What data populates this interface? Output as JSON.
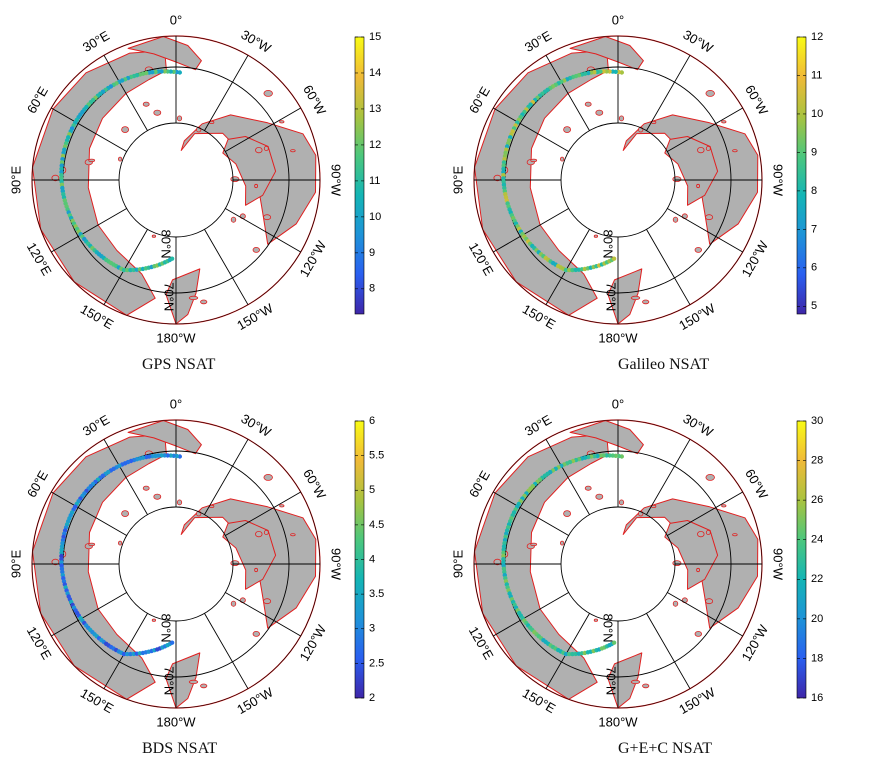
{
  "colors": {
    "ocean": "#ffffff",
    "land": "#b0b0b0",
    "coast": "#e02020",
    "grid": "#000000",
    "colormap": [
      "#3e26a8",
      "#2a5ff0",
      "#1e93d8",
      "#14b5b5",
      "#4cc77d",
      "#a9c33f",
      "#f0ba38",
      "#f9fb15"
    ]
  },
  "panels": [
    {
      "caption": "GPS NSAT",
      "longitude_labels": [
        "90°W",
        "120°W",
        "150°W",
        "180°W",
        "150°E",
        "120°E",
        "90°E",
        "60°E",
        "30°E",
        "0°",
        "30°W",
        "60°W"
      ],
      "latitude_label": "80°N",
      "latitude_label_2": "70°N",
      "colorbar": {
        "min": 7.3,
        "max": 15,
        "ticks": [
          8,
          9,
          10,
          11,
          12,
          13,
          14,
          15
        ]
      },
      "track_range": [
        9.5,
        12.5
      ]
    },
    {
      "caption": "Galileo NSAT",
      "longitude_labels": [
        "90°W",
        "120°W",
        "150°W",
        "180°W",
        "150°E",
        "120°E",
        "90°E",
        "60°E",
        "30°E",
        "0°",
        "30°W",
        "60°W"
      ],
      "latitude_label": "80°N",
      "latitude_label_2": "70°N",
      "colorbar": {
        "min": 4.8,
        "max": 12,
        "ticks": [
          5,
          6,
          7,
          8,
          9,
          10,
          11,
          12
        ]
      },
      "track_range": [
        7.5,
        10.5
      ]
    },
    {
      "caption": "BDS NSAT",
      "longitude_labels": [
        "90°W",
        "120°W",
        "150°W",
        "180°W",
        "150°E",
        "120°E",
        "90°E",
        "60°E",
        "30°E",
        "0°",
        "30°W",
        "60°W"
      ],
      "latitude_label": "80°N",
      "latitude_label_2": "70°N",
      "colorbar": {
        "min": 2,
        "max": 6,
        "ticks": [
          2,
          2.5,
          3,
          3.5,
          4,
          4.5,
          5,
          5.5,
          6
        ]
      },
      "track_range": [
        2.3,
        3.6
      ]
    },
    {
      "caption": "G+E+C NSAT",
      "longitude_labels": [
        "90°W",
        "120°W",
        "150°W",
        "180°W",
        "150°E",
        "120°E",
        "90°E",
        "60°E",
        "30°E",
        "0°",
        "30°W",
        "60°W"
      ],
      "latitude_label": "80°N",
      "latitude_label_2": "70°N",
      "colorbar": {
        "min": 16,
        "max": 30,
        "ticks": [
          16,
          18,
          20,
          22,
          24,
          26,
          28,
          30
        ]
      },
      "track_range": [
        21,
        25.5
      ]
    }
  ]
}
